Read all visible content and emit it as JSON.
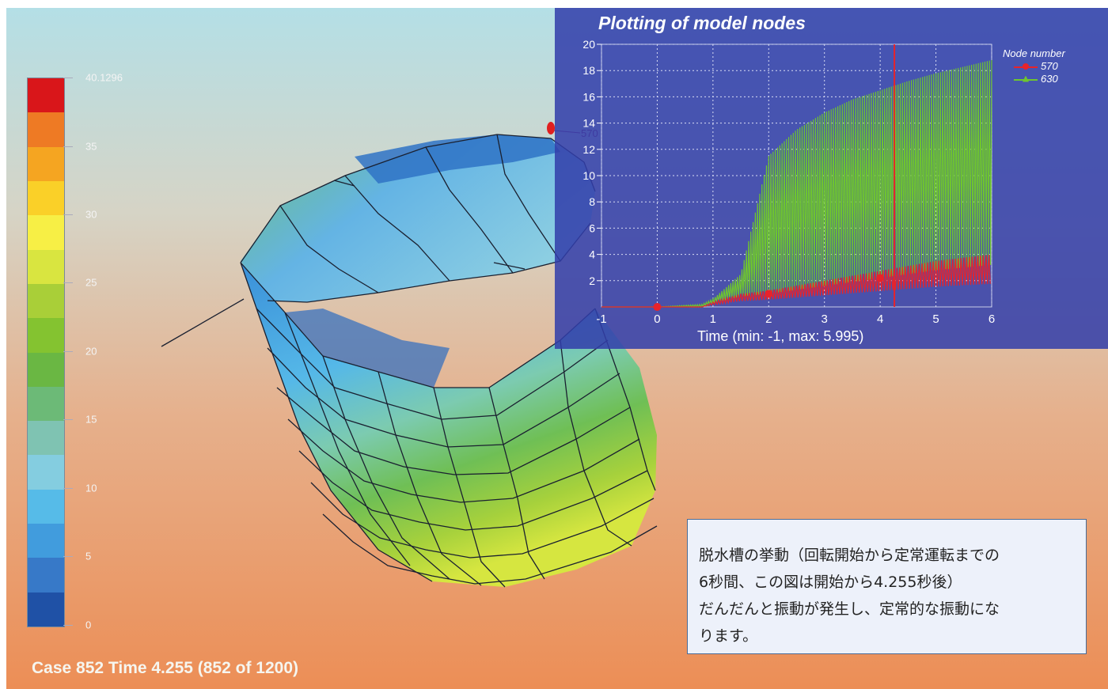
{
  "colorbar": {
    "max_label": "40.1296",
    "labels": [
      "35",
      "30",
      "25",
      "20",
      "15",
      "10",
      "5",
      "0"
    ],
    "colors": [
      "#d9161a",
      "#ee7a24",
      "#f5a521",
      "#fad028",
      "#f7ef45",
      "#d9e540",
      "#a9cf38",
      "#84c330",
      "#6ab743",
      "#6cba77",
      "#7fc3b2",
      "#84cde0",
      "#56bbe8",
      "#419cdd",
      "#3779c8",
      "#1f51a6"
    ]
  },
  "status": {
    "case_text": "Case 852 Time 4.255 (852 of 1200)"
  },
  "model": {
    "node_label": "570"
  },
  "plot": {
    "title": "Plotting of model nodes",
    "xaxis_title": "Time (min: -1, max: 5.995)",
    "legend_title": "Node number",
    "legend": [
      {
        "name": "570",
        "color": "#e8232a"
      },
      {
        "name": "630",
        "color": "#6fc62e"
      }
    ]
  },
  "chart_data": {
    "type": "line",
    "title": "Plotting of model nodes",
    "xlabel": "Time (min: -1, max: 5.995)",
    "ylabel": "",
    "xlim": [
      -1,
      6
    ],
    "ylim": [
      0,
      20
    ],
    "x_ticks": [
      "-1",
      "0",
      "1",
      "2",
      "3",
      "4",
      "5",
      "6"
    ],
    "y_ticks": [
      "2",
      "4",
      "6",
      "8",
      "10",
      "12",
      "14",
      "16",
      "18",
      "20"
    ],
    "grid": true,
    "legend_position": "top-right",
    "current_time": 4.255,
    "series": [
      {
        "name": "570",
        "color": "#e8232a",
        "x": [
          -1,
          0,
          0.8,
          1.0,
          1.5,
          2.0,
          2.5,
          3.0,
          3.5,
          4.0,
          4.5,
          5.0,
          5.5,
          6.0
        ],
        "y": [
          0,
          0,
          0,
          0.3,
          0.8,
          1.0,
          1.3,
          1.6,
          1.9,
          2.2,
          2.5,
          2.8,
          3.0,
          3.2
        ]
      },
      {
        "name": "630",
        "color": "#6fc62e",
        "x": [
          -1,
          0,
          0.8,
          1.0,
          1.5,
          2.0,
          2.5,
          3.0,
          3.5,
          4.0,
          4.5,
          5.0,
          5.5,
          6.0
        ],
        "y": [
          0,
          0,
          0.2,
          0.6,
          2.5,
          11.5,
          13.5,
          14.8,
          15.8,
          16.5,
          17.2,
          17.8,
          18.3,
          18.8
        ]
      }
    ]
  },
  "note": {
    "lines": [
      "脱水槽の挙動（回転開始から定常運転までの",
      "6秒間、この図は開始から4.255秒後）",
      "だんだんと振動が発生し、定常的な振動にな",
      "ります。"
    ]
  }
}
